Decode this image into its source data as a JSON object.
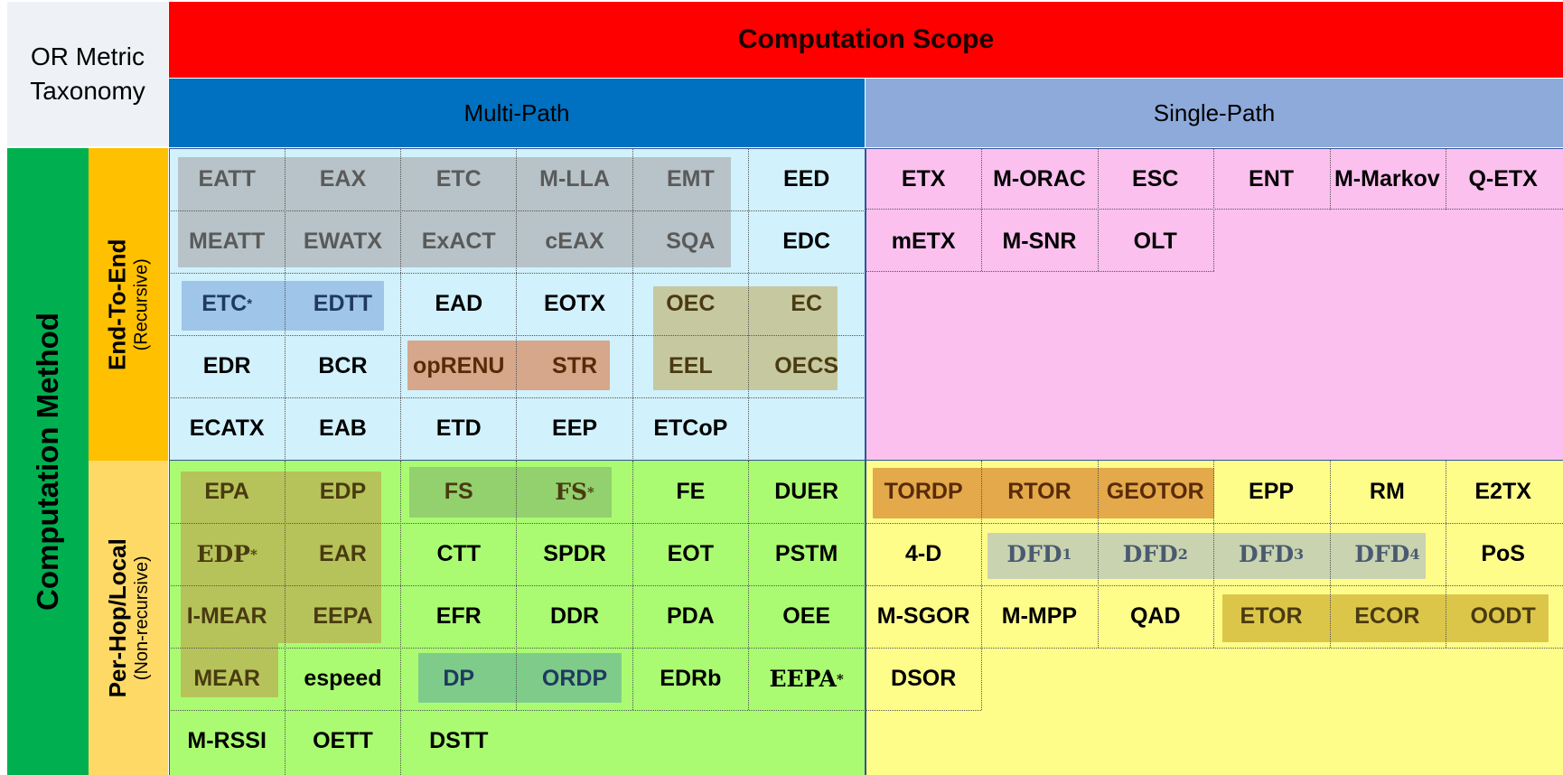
{
  "corner": {
    "line1": "OR Metric",
    "line2": "Taxonomy"
  },
  "scope_title": "Computation Scope",
  "multi_path": "Multi-Path",
  "single_path": "Single-Path",
  "method_title": "Computation Method",
  "end_to_end": {
    "label": "End-To-End",
    "sub": "(Recursive)"
  },
  "per_hop": {
    "label": "Per-Hop/Local",
    "sub": "(Non-recursive)"
  },
  "colors": {
    "red_header": "#ff0000",
    "multi_header": "#0070c0",
    "single_header": "#8eaadb",
    "method_bar": "#00b050",
    "e2e_bar": "#ffc000",
    "perhop_bar": "#ffd966",
    "q_e2e_multi": "#d1f1fc",
    "q_e2e_single": "#fbc0ee",
    "q_ph_multi": "#aafb72",
    "q_ph_single": "#fefd8a"
  },
  "cells": [
    {
      "t": "EATT",
      "c": "grey"
    },
    {
      "t": "EAX",
      "c": "grey"
    },
    {
      "t": "ETC",
      "c": "grey"
    },
    {
      "t": "M-LLA",
      "c": "grey"
    },
    {
      "t": "EMT",
      "c": "grey"
    },
    {
      "t": "EED",
      "c": ""
    },
    {
      "t": "MEATT",
      "c": "grey"
    },
    {
      "t": "EWATX",
      "c": "grey"
    },
    {
      "t": "ExACT",
      "c": "grey"
    },
    {
      "t": "cEAX",
      "c": "grey"
    },
    {
      "t": "SQA",
      "c": "grey"
    },
    {
      "t": "EDC",
      "c": ""
    },
    {
      "t": "ETC",
      "sup": "*",
      "c": "navy"
    },
    {
      "t": "EDTT",
      "c": "navy"
    },
    {
      "t": "EAD",
      "c": ""
    },
    {
      "t": "EOTX",
      "c": ""
    },
    {
      "t": "OEC",
      "c": "olive"
    },
    {
      "t": "EC",
      "c": "olive"
    },
    {
      "t": "EDR",
      "c": ""
    },
    {
      "t": "BCR",
      "c": ""
    },
    {
      "t": "opRENU",
      "c": "brown"
    },
    {
      "t": "STR",
      "c": "brown"
    },
    {
      "t": "EEL",
      "c": "olive"
    },
    {
      "t": "OECS",
      "c": "olive"
    },
    {
      "t": "ECATX",
      "c": ""
    },
    {
      "t": "EAB",
      "c": ""
    },
    {
      "t": "ETD",
      "c": ""
    },
    {
      "t": "EEP",
      "c": ""
    },
    {
      "t": "ETCoP",
      "c": ""
    },
    {
      "t": "ETX",
      "c": ""
    },
    {
      "t": "M-ORAC",
      "c": ""
    },
    {
      "t": "ESC",
      "c": ""
    },
    {
      "t": "ENT",
      "c": ""
    },
    {
      "t": "M-Markov",
      "c": ""
    },
    {
      "t": "Q-ETX",
      "c": ""
    },
    {
      "t": "mETX",
      "c": ""
    },
    {
      "t": "M-SNR",
      "c": ""
    },
    {
      "t": "OLT",
      "c": ""
    },
    {
      "t": "EPA",
      "c": "olive"
    },
    {
      "t": "EDP",
      "c": "olive"
    },
    {
      "t": "FS",
      "c": "olive"
    },
    {
      "t": "FS",
      "sup": "*",
      "c": "olive serif"
    },
    {
      "t": "FE",
      "c": ""
    },
    {
      "t": "DUER",
      "c": ""
    },
    {
      "t": "EDP",
      "sup": "*",
      "c": "olive serif"
    },
    {
      "t": "EAR",
      "c": "olive"
    },
    {
      "t": "CTT",
      "c": ""
    },
    {
      "t": "SPDR",
      "c": ""
    },
    {
      "t": "EOT",
      "c": ""
    },
    {
      "t": "PSTM",
      "c": ""
    },
    {
      "t": "I-MEAR",
      "c": "olive"
    },
    {
      "t": "EEPA",
      "c": "olive"
    },
    {
      "t": "EFR",
      "c": ""
    },
    {
      "t": "DDR",
      "c": ""
    },
    {
      "t": "PDA",
      "c": ""
    },
    {
      "t": "OEE",
      "c": ""
    },
    {
      "t": "MEAR",
      "c": "olive"
    },
    {
      "t": "espeed",
      "c": ""
    },
    {
      "t": "DP",
      "c": "navy"
    },
    {
      "t": "ORDP",
      "c": "navy"
    },
    {
      "t": "EDRb",
      "c": ""
    },
    {
      "t": "EEPA",
      "sup": "*",
      "c": "serif"
    },
    {
      "t": "M-RSSI",
      "c": ""
    },
    {
      "t": "OETT",
      "c": ""
    },
    {
      "t": "DSTT",
      "c": ""
    },
    {
      "t": "TORDP",
      "c": "brown"
    },
    {
      "t": "RTOR",
      "c": "brown"
    },
    {
      "t": "GEOTOR",
      "c": "brown"
    },
    {
      "t": "EPP",
      "c": ""
    },
    {
      "t": "RM",
      "c": ""
    },
    {
      "t": "E2TX",
      "c": ""
    },
    {
      "t": "4-D",
      "c": ""
    },
    {
      "t": "DFD",
      "sub": "1",
      "c": "slate serif"
    },
    {
      "t": "DFD",
      "sub": "2",
      "c": "slate serif"
    },
    {
      "t": "DFD",
      "sub": "3",
      "c": "slate serif"
    },
    {
      "t": "DFD",
      "sub": "4",
      "c": "slate serif"
    },
    {
      "t": "PoS",
      "c": ""
    },
    {
      "t": "M-SGOR",
      "c": ""
    },
    {
      "t": "M-MPP",
      "c": ""
    },
    {
      "t": "QAD",
      "c": ""
    },
    {
      "t": "ETOR",
      "c": "olive"
    },
    {
      "t": "ECOR",
      "c": "olive"
    },
    {
      "t": "OODT",
      "c": "olive"
    },
    {
      "t": "DSOR",
      "c": ""
    }
  ]
}
